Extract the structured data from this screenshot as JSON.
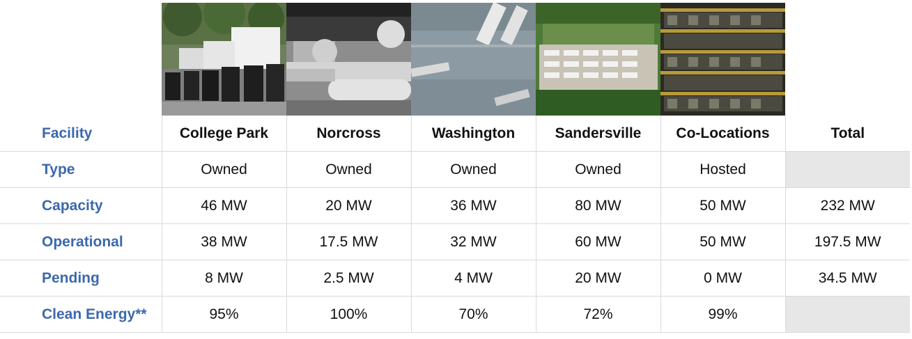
{
  "table": {
    "header": {
      "label": "Facility",
      "facilities": [
        "College Park",
        "Norcross",
        "Washington",
        "Sandersville",
        "Co-Locations"
      ],
      "total": "Total"
    },
    "rows": [
      {
        "label": "Type",
        "values": [
          "Owned",
          "Owned",
          "Owned",
          "Owned",
          "Hosted"
        ],
        "total": ""
      },
      {
        "label": "Capacity",
        "values": [
          "46 MW",
          "20 MW",
          "36 MW",
          "80 MW",
          "50 MW"
        ],
        "total": "232 MW"
      },
      {
        "label": "Operational",
        "values": [
          "38 MW",
          "17.5 MW",
          "32 MW",
          "60 MW",
          "50 MW"
        ],
        "total": "197.5 MW"
      },
      {
        "label": "Pending",
        "values": [
          "8 MW",
          "2.5 MW",
          "4 MW",
          "20 MW",
          "0 MW"
        ],
        "total": "34.5 MW"
      },
      {
        "label": "Clean Energy**",
        "values": [
          "95%",
          "100%",
          "70%",
          "72%",
          "99%"
        ],
        "total": ""
      }
    ]
  },
  "photos": [
    {
      "depicts": "college-park-facility"
    },
    {
      "depicts": "norcross-facility"
    },
    {
      "depicts": "washington-facility"
    },
    {
      "depicts": "sandersville-facility"
    },
    {
      "depicts": "co-location-miners"
    }
  ],
  "colors": {
    "label_blue": "#3b68ad",
    "grid_line": "#d9d9d9",
    "shaded_cell": "#e7e7e7"
  }
}
